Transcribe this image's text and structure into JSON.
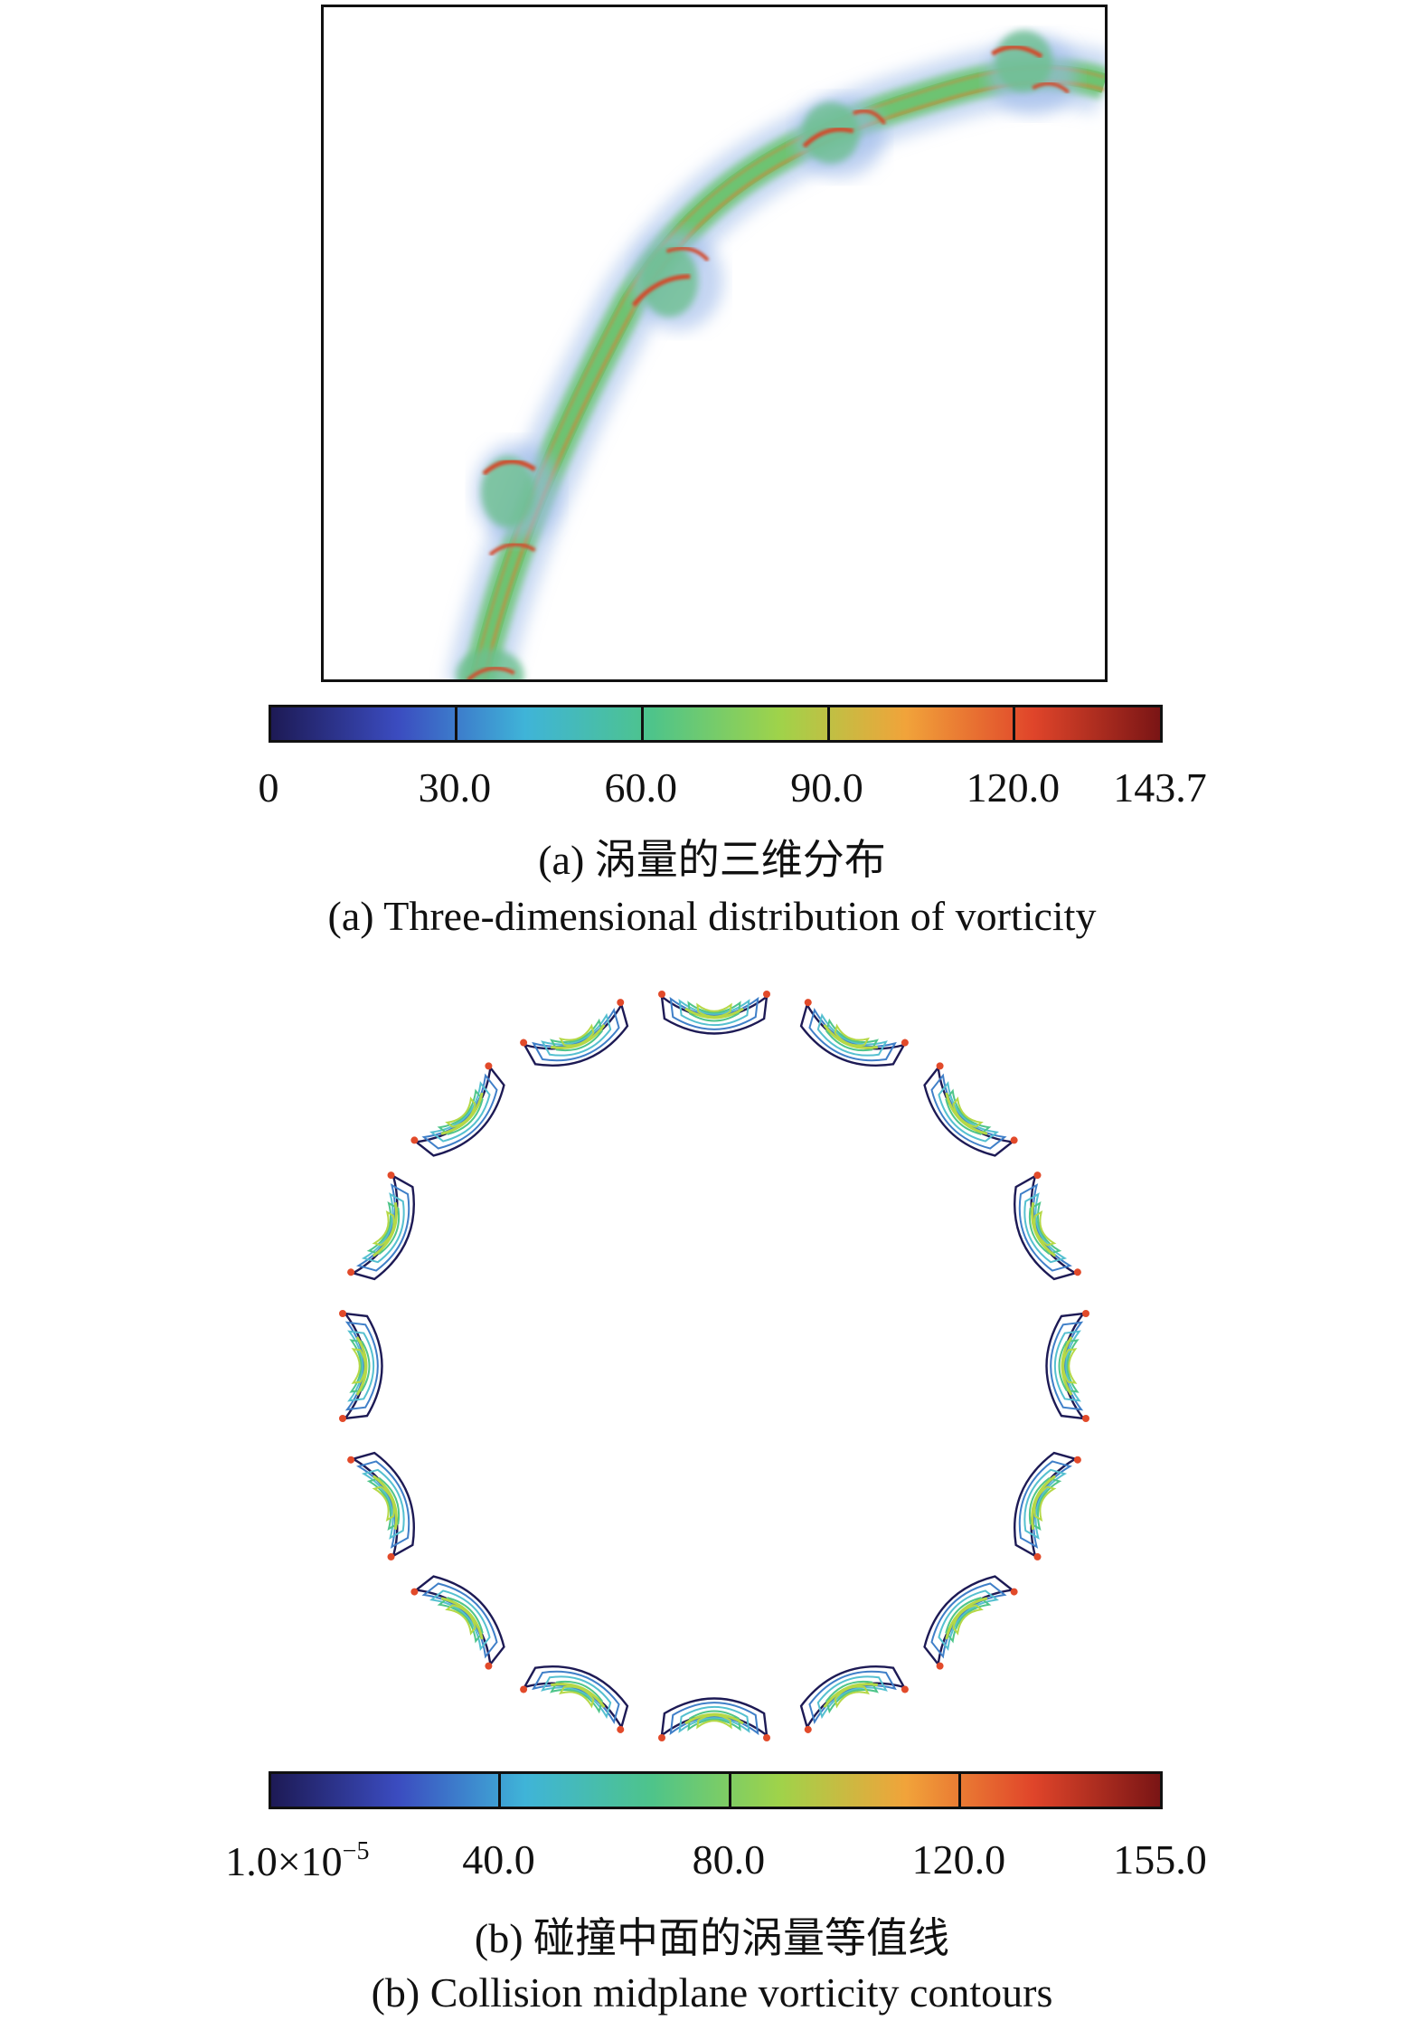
{
  "figure_a": {
    "colorbar": {
      "min": 0,
      "max": 143.7,
      "ticks": [
        "0",
        "30.0",
        "60.0",
        "90.0",
        "120.0",
        "143.7"
      ],
      "tick_values": [
        0,
        30,
        60,
        90,
        120,
        143.7
      ],
      "colors": [
        "#1d1a55",
        "#3b4cc0",
        "#3fb4d8",
        "#4ec48a",
        "#9fd34a",
        "#f1a33a",
        "#e0452a",
        "#7a1515"
      ]
    },
    "caption_cn": "(a) 涡量的三维分布",
    "caption_en": "(a) Three-dimensional distribution of vorticity"
  },
  "figure_b": {
    "colorbar": {
      "min": 1e-05,
      "max": 155.0,
      "ticks": [
        "1.0×10",
        "40.0",
        "80.0",
        "120.0",
        "155.0"
      ],
      "tick_min_exponent": "−5",
      "tick_values": [
        1e-05,
        40,
        80,
        120,
        155
      ],
      "colors": [
        "#1d1a55",
        "#3b4cc0",
        "#3fb4d8",
        "#4ec48a",
        "#9fd34a",
        "#f1a33a",
        "#e0452a",
        "#7a1515"
      ]
    },
    "contour_count": 16,
    "contour_colors": [
      "#1d1a55",
      "#3f7fc8",
      "#55c0d0",
      "#4fc58a",
      "#b5d846",
      "#e24a2a"
    ],
    "caption_cn": "(b) 碰撞中面的涡量等值线",
    "caption_en": "(b) Collision midplane vorticity contours"
  }
}
